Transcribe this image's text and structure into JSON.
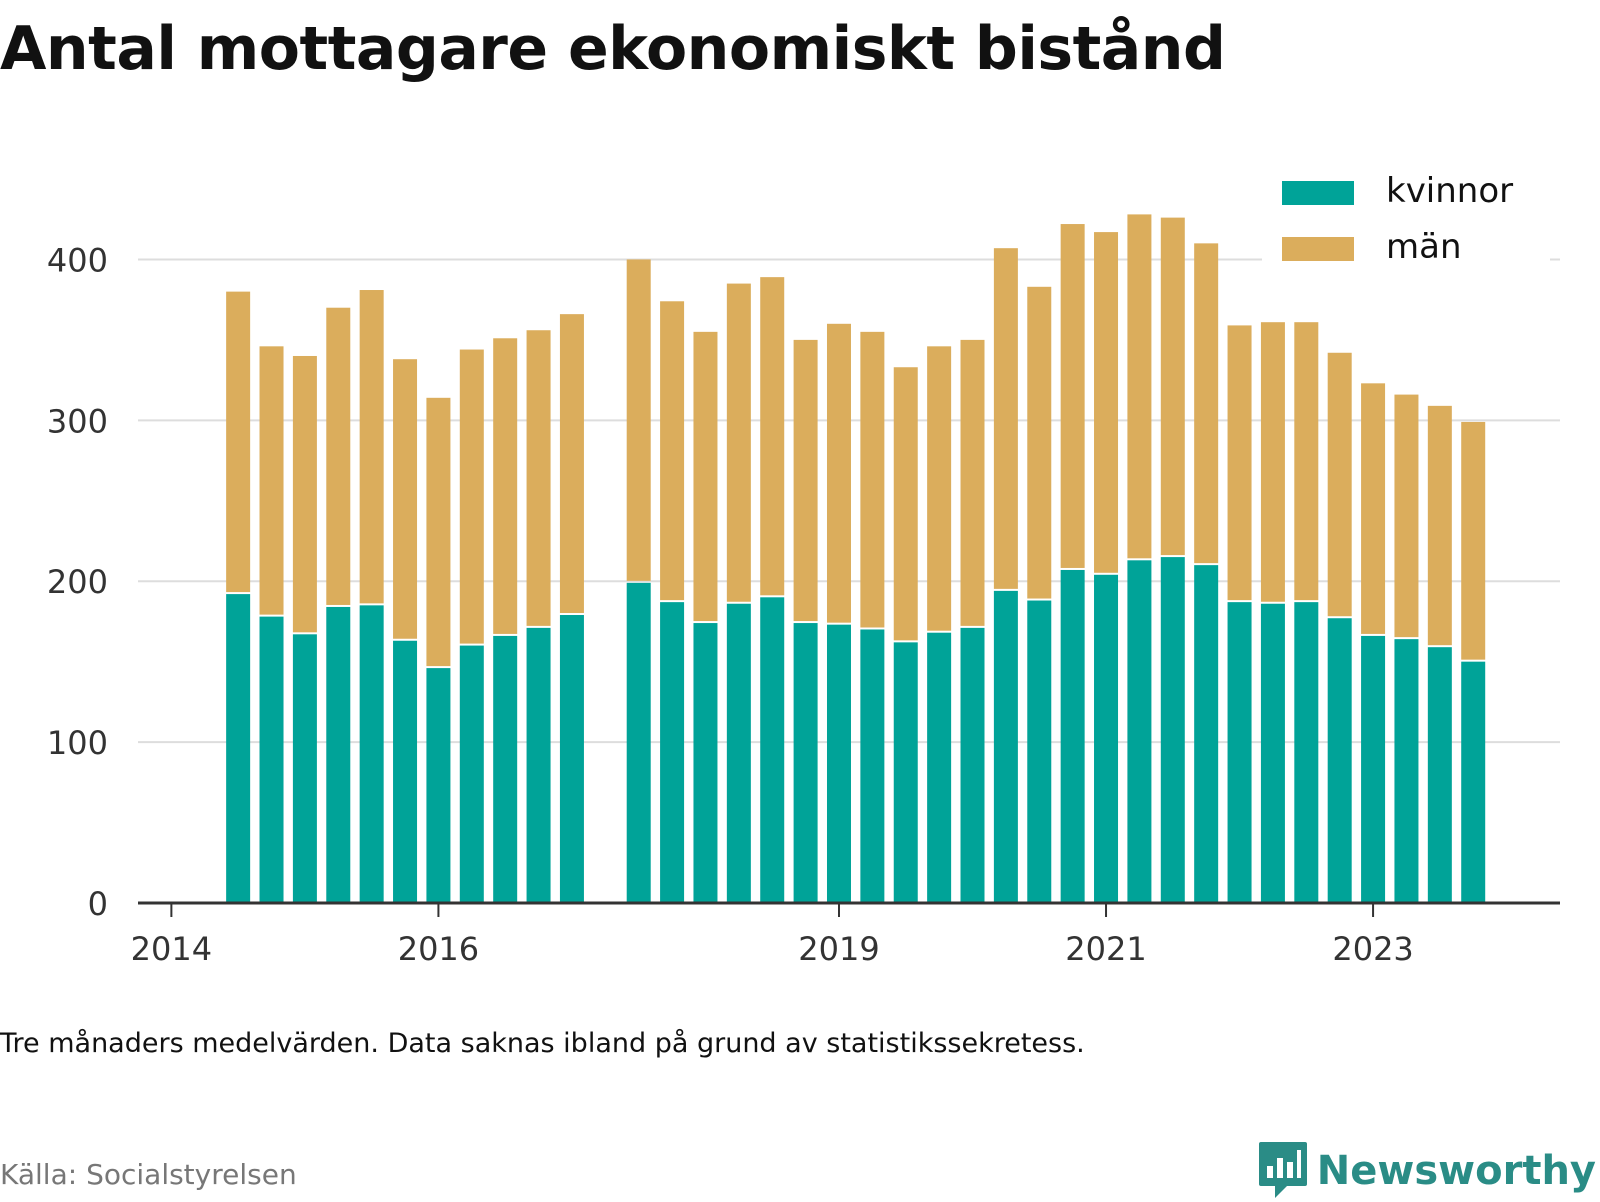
{
  "title": "Antal mottagare ekonomiskt bistånd",
  "note": "Tre månaders medelvärden. Data saknas ibland på grund av statistikssekretess.",
  "source": "Källa: Socialstyrelsen",
  "brand": "Newsworthy",
  "colors": {
    "kvinnor": "#00a398",
    "man": "#dbad5c",
    "grid": "#dddddd",
    "axis": "#333333"
  },
  "chart_data": {
    "type": "bar",
    "stacked": true,
    "title": "Antal mottagare ekonomiskt bistånd",
    "xlabel": "",
    "ylabel": "",
    "ylim": [
      0,
      450
    ],
    "yticks": [
      0,
      100,
      200,
      300,
      400
    ],
    "xlim": [
      2013.75,
      2024.4
    ],
    "xticks": [
      2014,
      2016,
      2019,
      2021,
      2023
    ],
    "grid": true,
    "legend_position": "top-right",
    "series_names": [
      "kvinnor",
      "män"
    ],
    "bars": [
      {
        "x": 2014.5,
        "kvinnor": 192,
        "man": 188
      },
      {
        "x": 2014.75,
        "kvinnor": 178,
        "man": 168
      },
      {
        "x": 2015.0,
        "kvinnor": 167,
        "man": 173
      },
      {
        "x": 2015.25,
        "kvinnor": 184,
        "man": 186
      },
      {
        "x": 2015.5,
        "kvinnor": 185,
        "man": 196
      },
      {
        "x": 2015.75,
        "kvinnor": 163,
        "man": 175
      },
      {
        "x": 2016.0,
        "kvinnor": 146,
        "man": 168
      },
      {
        "x": 2016.25,
        "kvinnor": 160,
        "man": 184
      },
      {
        "x": 2016.5,
        "kvinnor": 166,
        "man": 185
      },
      {
        "x": 2016.75,
        "kvinnor": 171,
        "man": 185
      },
      {
        "x": 2017.0,
        "kvinnor": 179,
        "man": 187
      },
      {
        "x": 2017.5,
        "kvinnor": 199,
        "man": 201
      },
      {
        "x": 2017.75,
        "kvinnor": 187,
        "man": 187
      },
      {
        "x": 2018.0,
        "kvinnor": 174,
        "man": 181
      },
      {
        "x": 2018.25,
        "kvinnor": 186,
        "man": 199
      },
      {
        "x": 2018.5,
        "kvinnor": 190,
        "man": 199
      },
      {
        "x": 2018.75,
        "kvinnor": 174,
        "man": 176
      },
      {
        "x": 2019.0,
        "kvinnor": 173,
        "man": 187
      },
      {
        "x": 2019.25,
        "kvinnor": 170,
        "man": 185
      },
      {
        "x": 2019.5,
        "kvinnor": 162,
        "man": 171
      },
      {
        "x": 2019.75,
        "kvinnor": 168,
        "man": 178
      },
      {
        "x": 2020.0,
        "kvinnor": 171,
        "man": 179
      },
      {
        "x": 2020.25,
        "kvinnor": 194,
        "man": 213
      },
      {
        "x": 2020.5,
        "kvinnor": 188,
        "man": 195
      },
      {
        "x": 2020.75,
        "kvinnor": 207,
        "man": 215
      },
      {
        "x": 2021.0,
        "kvinnor": 204,
        "man": 213
      },
      {
        "x": 2021.25,
        "kvinnor": 213,
        "man": 215
      },
      {
        "x": 2021.5,
        "kvinnor": 215,
        "man": 211
      },
      {
        "x": 2021.75,
        "kvinnor": 210,
        "man": 200
      },
      {
        "x": 2022.0,
        "kvinnor": 187,
        "man": 172
      },
      {
        "x": 2022.25,
        "kvinnor": 186,
        "man": 175
      },
      {
        "x": 2022.5,
        "kvinnor": 187,
        "man": 174
      },
      {
        "x": 2022.75,
        "kvinnor": 177,
        "man": 165
      },
      {
        "x": 2023.0,
        "kvinnor": 166,
        "man": 157
      },
      {
        "x": 2023.25,
        "kvinnor": 164,
        "man": 152
      },
      {
        "x": 2023.5,
        "kvinnor": 159,
        "man": 150
      },
      {
        "x": 2023.75,
        "kvinnor": 150,
        "man": 149
      }
    ]
  }
}
